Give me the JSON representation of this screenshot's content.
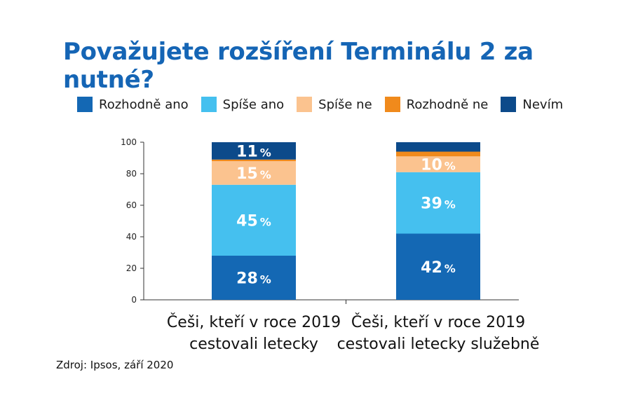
{
  "chart_data": {
    "type": "bar",
    "stacked": true,
    "title": "Považujete rozšíření Terminálu 2 za nutné?",
    "categories": [
      "Češi, kteří v roce 2019 cestovali letecky",
      "Češi, kteří v roce 2019 cestovali letecky služebně"
    ],
    "series": [
      {
        "name": "Rozhodně ano",
        "color": "#1468b4",
        "values": [
          28,
          42
        ],
        "labels": [
          "28",
          "42"
        ]
      },
      {
        "name": "Spíše ano",
        "color": "#45c0ef",
        "values": [
          45,
          39
        ],
        "labels": [
          "45",
          "39"
        ]
      },
      {
        "name": "Spíše ne",
        "color": "#fbc38f",
        "values": [
          15,
          10
        ],
        "labels": [
          "15",
          "10"
        ]
      },
      {
        "name": "Rozhodně ne",
        "color": "#f08a1c",
        "values": [
          1,
          3
        ],
        "labels": [
          "",
          ""
        ]
      },
      {
        "name": "Nevím",
        "color": "#0c4a8a",
        "values": [
          11,
          6
        ],
        "labels": [
          "11",
          ""
        ]
      }
    ],
    "ylim": [
      0,
      100
    ],
    "yticks": [
      0,
      20,
      40,
      60,
      80,
      100
    ],
    "percent_sign": "%",
    "legend_position": "top",
    "grid": false
  },
  "source": "Zdroj: Ipsos, září 2020"
}
